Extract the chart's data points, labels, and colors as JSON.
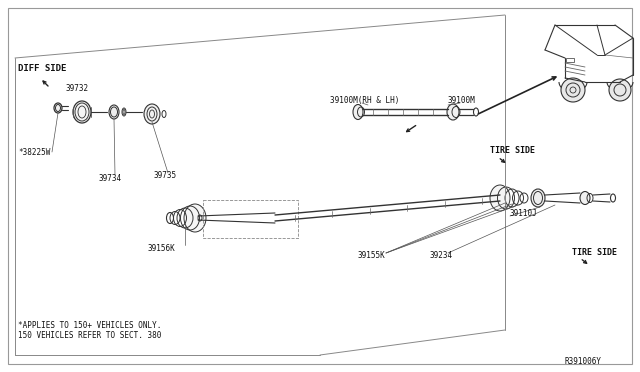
{
  "bg_color": "#ffffff",
  "line_color": "#333333",
  "light_color": "#aaaaaa",
  "ref_number": "R391006Y",
  "labels": {
    "diff_side": "DIFF SIDE",
    "tire_side_1": "TIRE SIDE",
    "tire_side_2": "TIRE SIDE",
    "note_line1": "*APPLIES TO 150+ VEHICLES ONLY.",
    "note_line2": "150 VEHICLES REFER TO SECT. 380",
    "part_39732": "39732",
    "part_38225W": "*38225W",
    "part_39734": "39734",
    "part_39735": "39735",
    "part_39156K": "39156K",
    "part_39100M_label": "39100M(RH & LH)",
    "part_39100M": "39100M",
    "part_39110J": "39110J",
    "part_39155K": "39155K",
    "part_39234": "39234"
  }
}
